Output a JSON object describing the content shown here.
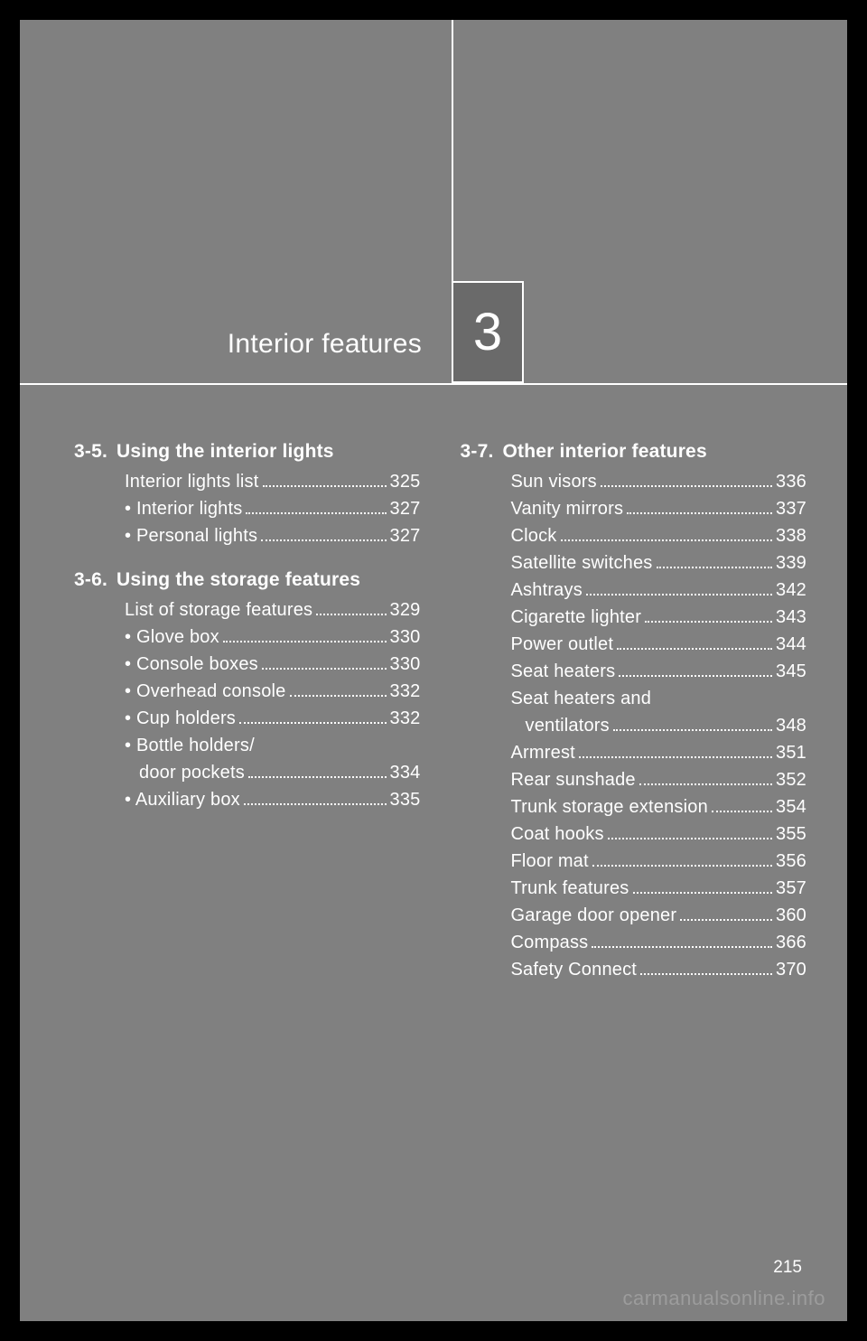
{
  "chapter": {
    "title": "Interior features",
    "number": "3"
  },
  "pageNumber": "215",
  "watermark": "carmanualsonline.info",
  "left": {
    "sections": [
      {
        "num": "3-5.",
        "title": "Using the interior lights",
        "items": [
          {
            "label": "Interior lights list",
            "page": "325",
            "sub": false
          },
          {
            "label": "Interior lights",
            "page": "327",
            "sub": true
          },
          {
            "label": "Personal lights",
            "page": "327",
            "sub": true
          }
        ]
      },
      {
        "num": "3-6.",
        "title": "Using the storage features",
        "items": [
          {
            "label": "List of storage features",
            "page": "329",
            "sub": false
          },
          {
            "label": "Glove box",
            "page": "330",
            "sub": true
          },
          {
            "label": "Console boxes",
            "page": "330",
            "sub": true
          },
          {
            "label": "Overhead console",
            "page": "332",
            "sub": true
          },
          {
            "label": "Cup holders",
            "page": "332",
            "sub": true
          },
          {
            "label": "Bottle holders/\ndoor pockets",
            "page": "334",
            "sub": true,
            "multiline": true
          },
          {
            "label": "Auxiliary box",
            "page": "335",
            "sub": true
          }
        ]
      }
    ]
  },
  "right": {
    "sections": [
      {
        "num": "3-7.",
        "title": "Other interior features",
        "items": [
          {
            "label": "Sun visors",
            "page": "336",
            "sub": false
          },
          {
            "label": "Vanity mirrors",
            "page": "337",
            "sub": false
          },
          {
            "label": "Clock",
            "page": "338",
            "sub": false
          },
          {
            "label": "Satellite switches",
            "page": "339",
            "sub": false
          },
          {
            "label": "Ashtrays",
            "page": "342",
            "sub": false
          },
          {
            "label": "Cigarette lighter",
            "page": "343",
            "sub": false
          },
          {
            "label": "Power outlet",
            "page": "344",
            "sub": false
          },
          {
            "label": "Seat heaters",
            "page": "345",
            "sub": false
          },
          {
            "label": "Seat heaters and\nventilators",
            "page": "348",
            "sub": false,
            "multiline": true
          },
          {
            "label": "Armrest",
            "page": "351",
            "sub": false
          },
          {
            "label": "Rear sunshade",
            "page": "352",
            "sub": false
          },
          {
            "label": "Trunk storage extension",
            "page": "354",
            "sub": false
          },
          {
            "label": "Coat hooks",
            "page": "355",
            "sub": false
          },
          {
            "label": "Floor mat",
            "page": "356",
            "sub": false
          },
          {
            "label": "Trunk features",
            "page": "357",
            "sub": false
          },
          {
            "label": "Garage door opener",
            "page": "360",
            "sub": false
          },
          {
            "label": "Compass",
            "page": "366",
            "sub": false
          },
          {
            "label": "Safety Connect",
            "page": "370",
            "sub": false
          }
        ]
      }
    ]
  }
}
